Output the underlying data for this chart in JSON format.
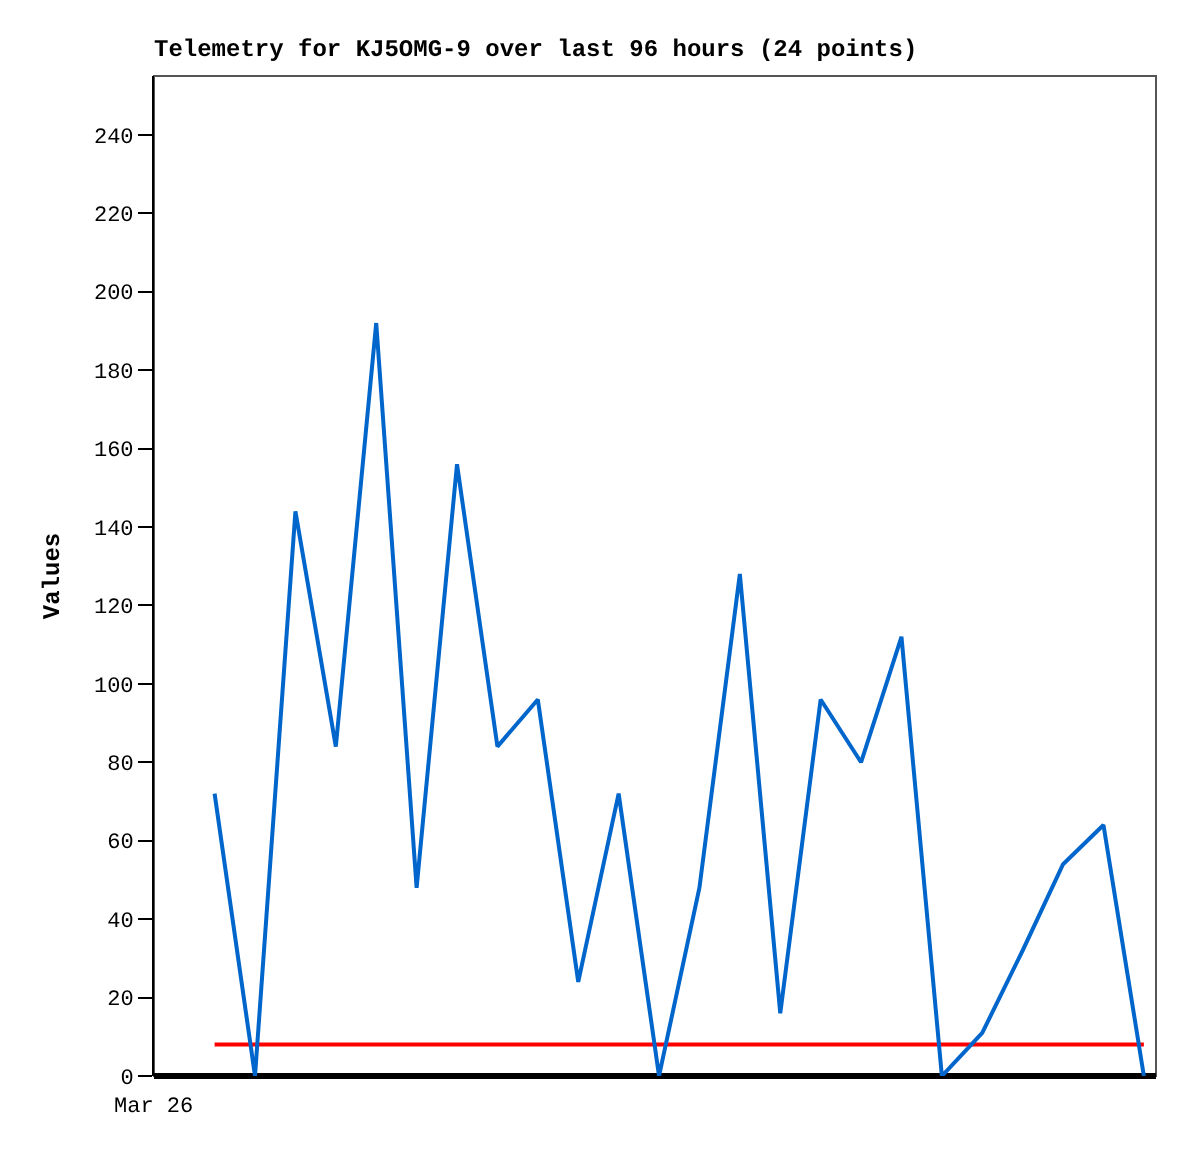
{
  "chart_data": {
    "type": "line",
    "title": "Telemetry for KJ5OMG-9 over last 96 hours (24 points)",
    "ylabel": "Values",
    "annotations": [
      "Mar 26"
    ],
    "categories": [
      null,
      null,
      null,
      null,
      null,
      null,
      null,
      null,
      null,
      null,
      null,
      null,
      null,
      null,
      null,
      null,
      null,
      null,
      null,
      null,
      null,
      null,
      null,
      null
    ],
    "ylim": [
      0,
      255
    ],
    "yticks": [
      0,
      20,
      40,
      60,
      80,
      100,
      120,
      140,
      160,
      180,
      200,
      220,
      240
    ],
    "grid": false,
    "marker": "none",
    "line_style": "solid",
    "series": [
      {
        "color": "#0066cc",
        "values": [
          72,
          0,
          144,
          84,
          192,
          48,
          156,
          84,
          96,
          24,
          72,
          0,
          48,
          128,
          16,
          96,
          80,
          112,
          0,
          11,
          32,
          54,
          64,
          0
        ]
      }
    ],
    "ref_lines": [
      {
        "axis": "y",
        "value": 8,
        "color": "#ff0000"
      }
    ]
  }
}
